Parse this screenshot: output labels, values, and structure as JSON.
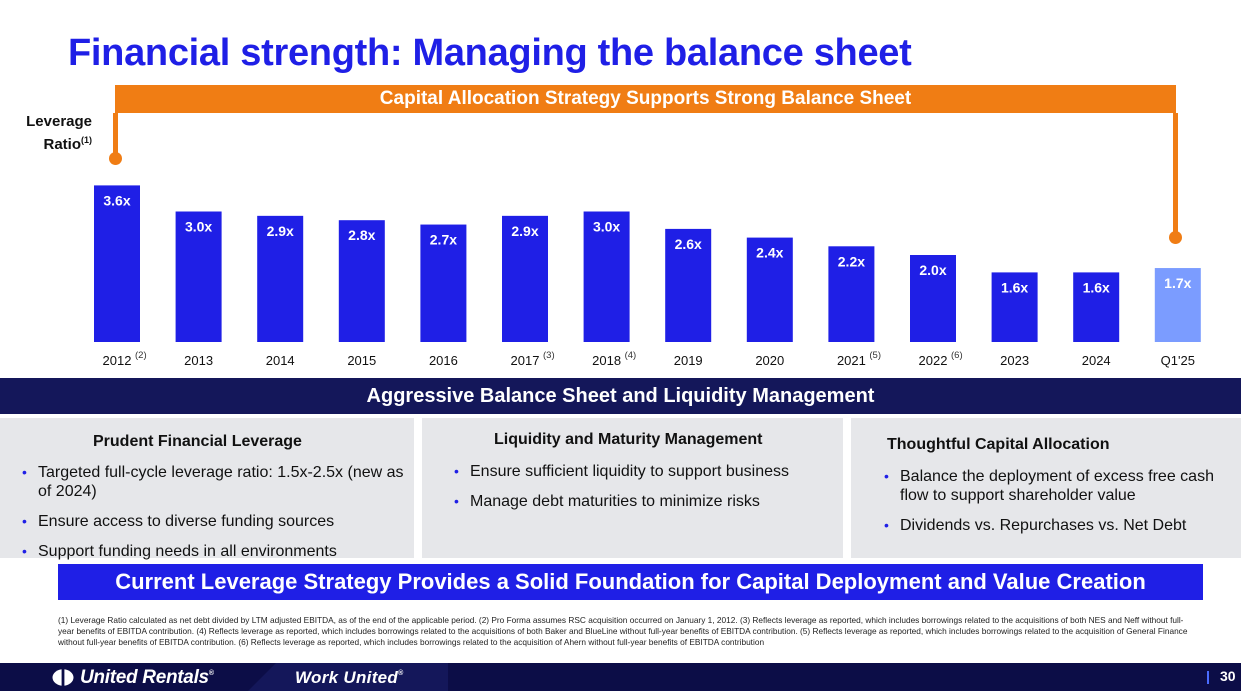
{
  "title": "Financial strength: Managing the balance sheet",
  "bracket_label": "Capital Allocation Strategy Supports Strong Balance Sheet",
  "leverage_axis": {
    "line1": "Leverage",
    "line2": "Ratio",
    "sup": "(1)"
  },
  "chart_data": {
    "type": "bar",
    "categories": [
      "2012",
      "2013",
      "2014",
      "2015",
      "2016",
      "2017",
      "2018",
      "2019",
      "2020",
      "2021",
      "2022",
      "2023",
      "2024",
      "Q1'25"
    ],
    "category_notes": [
      "(2)",
      "",
      "",
      "",
      "",
      "(3)",
      "(4)",
      "",
      "",
      "(5)",
      "(6)",
      "",
      "",
      ""
    ],
    "values": [
      3.6,
      3.0,
      2.9,
      2.8,
      2.7,
      2.9,
      3.0,
      2.6,
      2.4,
      2.2,
      2.0,
      1.6,
      1.6,
      1.7
    ],
    "labels": [
      "3.6x",
      "3.0x",
      "2.9x",
      "2.8x",
      "2.7x",
      "2.9x",
      "3.0x",
      "2.6x",
      "2.4x",
      "2.2x",
      "2.0x",
      "1.6x",
      "1.6x",
      "1.7x"
    ],
    "ylabel": "Leverage Ratio(1)",
    "colors": {
      "primary": "#1f1fe6",
      "latest": "#7b9cff"
    },
    "grid": false
  },
  "band_label": "Aggressive Balance Sheet and Liquidity Management",
  "panels": [
    {
      "heading": "Prudent Financial Leverage",
      "bullets": [
        "Targeted full-cycle leverage ratio: 1.5x-2.5x (new as of 2024)",
        "Ensure access to diverse funding sources",
        "Support funding needs in all environments"
      ]
    },
    {
      "heading": "Liquidity and Maturity Management",
      "bullets": [
        "Ensure sufficient liquidity to support business",
        "Manage debt maturities to minimize risks"
      ]
    },
    {
      "heading": "Thoughtful Capital Allocation",
      "bullets": [
        "Balance the deployment of excess free cash flow to support shareholder value",
        "Dividends vs. Repurchases vs. Net Debt"
      ]
    }
  ],
  "bullet_glyph": "•",
  "banner_label": "Current Leverage Strategy Provides a Solid Foundation for Capital Deployment and Value Creation",
  "footnote": "(1) Leverage Ratio calculated as net debt divided by LTM adjusted EBITDA, as of the end of the applicable period. (2) Pro Forma assumes RSC acquisition occurred on January 1, 2012. (3) Reflects leverage as reported, which includes borrowings related to the acquisitions of both NES and Neff without full-year benefits of EBITDA contribution. (4) Reflects leverage as reported, which includes borrowings related to the acquisitions of both Baker and BlueLine without full-year benefits of EBITDA contribution. (5) Reflects leverage as reported, which includes borrowings related to the acquisition of General Finance without full-year benefits of EBITDA contribution. (6) Reflects leverage as reported, which includes borrowings related to the acquisition of Ahern without full-year benefits of EBITDA contribution",
  "footer": {
    "brand": "United Rentals",
    "brand_mark": "®",
    "tagline": "Work United",
    "tagline_mark": "®",
    "page_number": "30"
  },
  "colors": {
    "title": "#1f1fe6",
    "bracket": "#f07d14",
    "band": "#14175a",
    "panel_bg": "#e6e7ea",
    "banner": "#1f1fe6",
    "footer": "#0c0d47"
  }
}
